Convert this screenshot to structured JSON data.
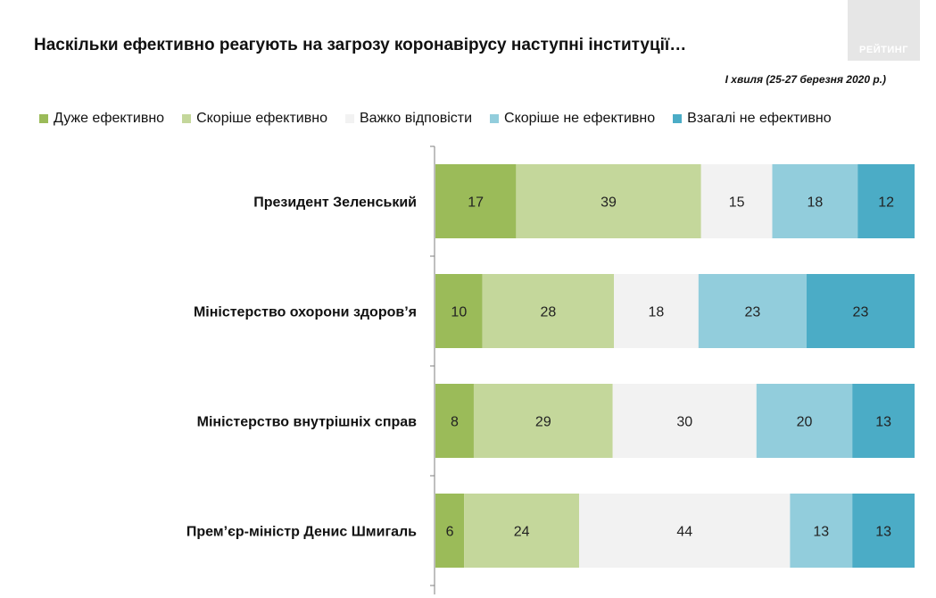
{
  "title": "Наскільки ефективно реагують на загрозу коронавірусу наступні інституції…",
  "subtitle": "І хвиля (25-27 березня 2020 р.)",
  "logo_text": "РЕЙТИНГ",
  "colors": {
    "very_effective": "#9bbb59",
    "rather_effective": "#c4d79b",
    "hard_to_say": "#f2f2f2",
    "rather_not_effective": "#92cddc",
    "not_effective": "#4bacc6"
  },
  "chart_data": {
    "type": "bar",
    "orientation": "horizontal",
    "stacked": true,
    "percent_stacked": true,
    "legend_position": "top",
    "categories": [
      "Президент Зеленський",
      "Міністерство охорони здоров’я",
      "Міністерство внутрішніх справ",
      "Прем’єр-міністр Денис Шмигаль"
    ],
    "series": [
      {
        "name": "Дуже ефективно",
        "color": "#9bbb59",
        "values": [
          17,
          10,
          8,
          6
        ]
      },
      {
        "name": "Скоріше ефективно",
        "color": "#c4d79b",
        "values": [
          39,
          28,
          29,
          24
        ]
      },
      {
        "name": "Важко відповісти",
        "color": "#f2f2f2",
        "values": [
          15,
          18,
          30,
          44
        ]
      },
      {
        "name": "Скоріше не ефективно",
        "color": "#92cddc",
        "values": [
          18,
          23,
          20,
          13
        ]
      },
      {
        "name": "Взагалі не ефективно",
        "color": "#4bacc6",
        "values": [
          12,
          23,
          13,
          13
        ]
      }
    ]
  }
}
